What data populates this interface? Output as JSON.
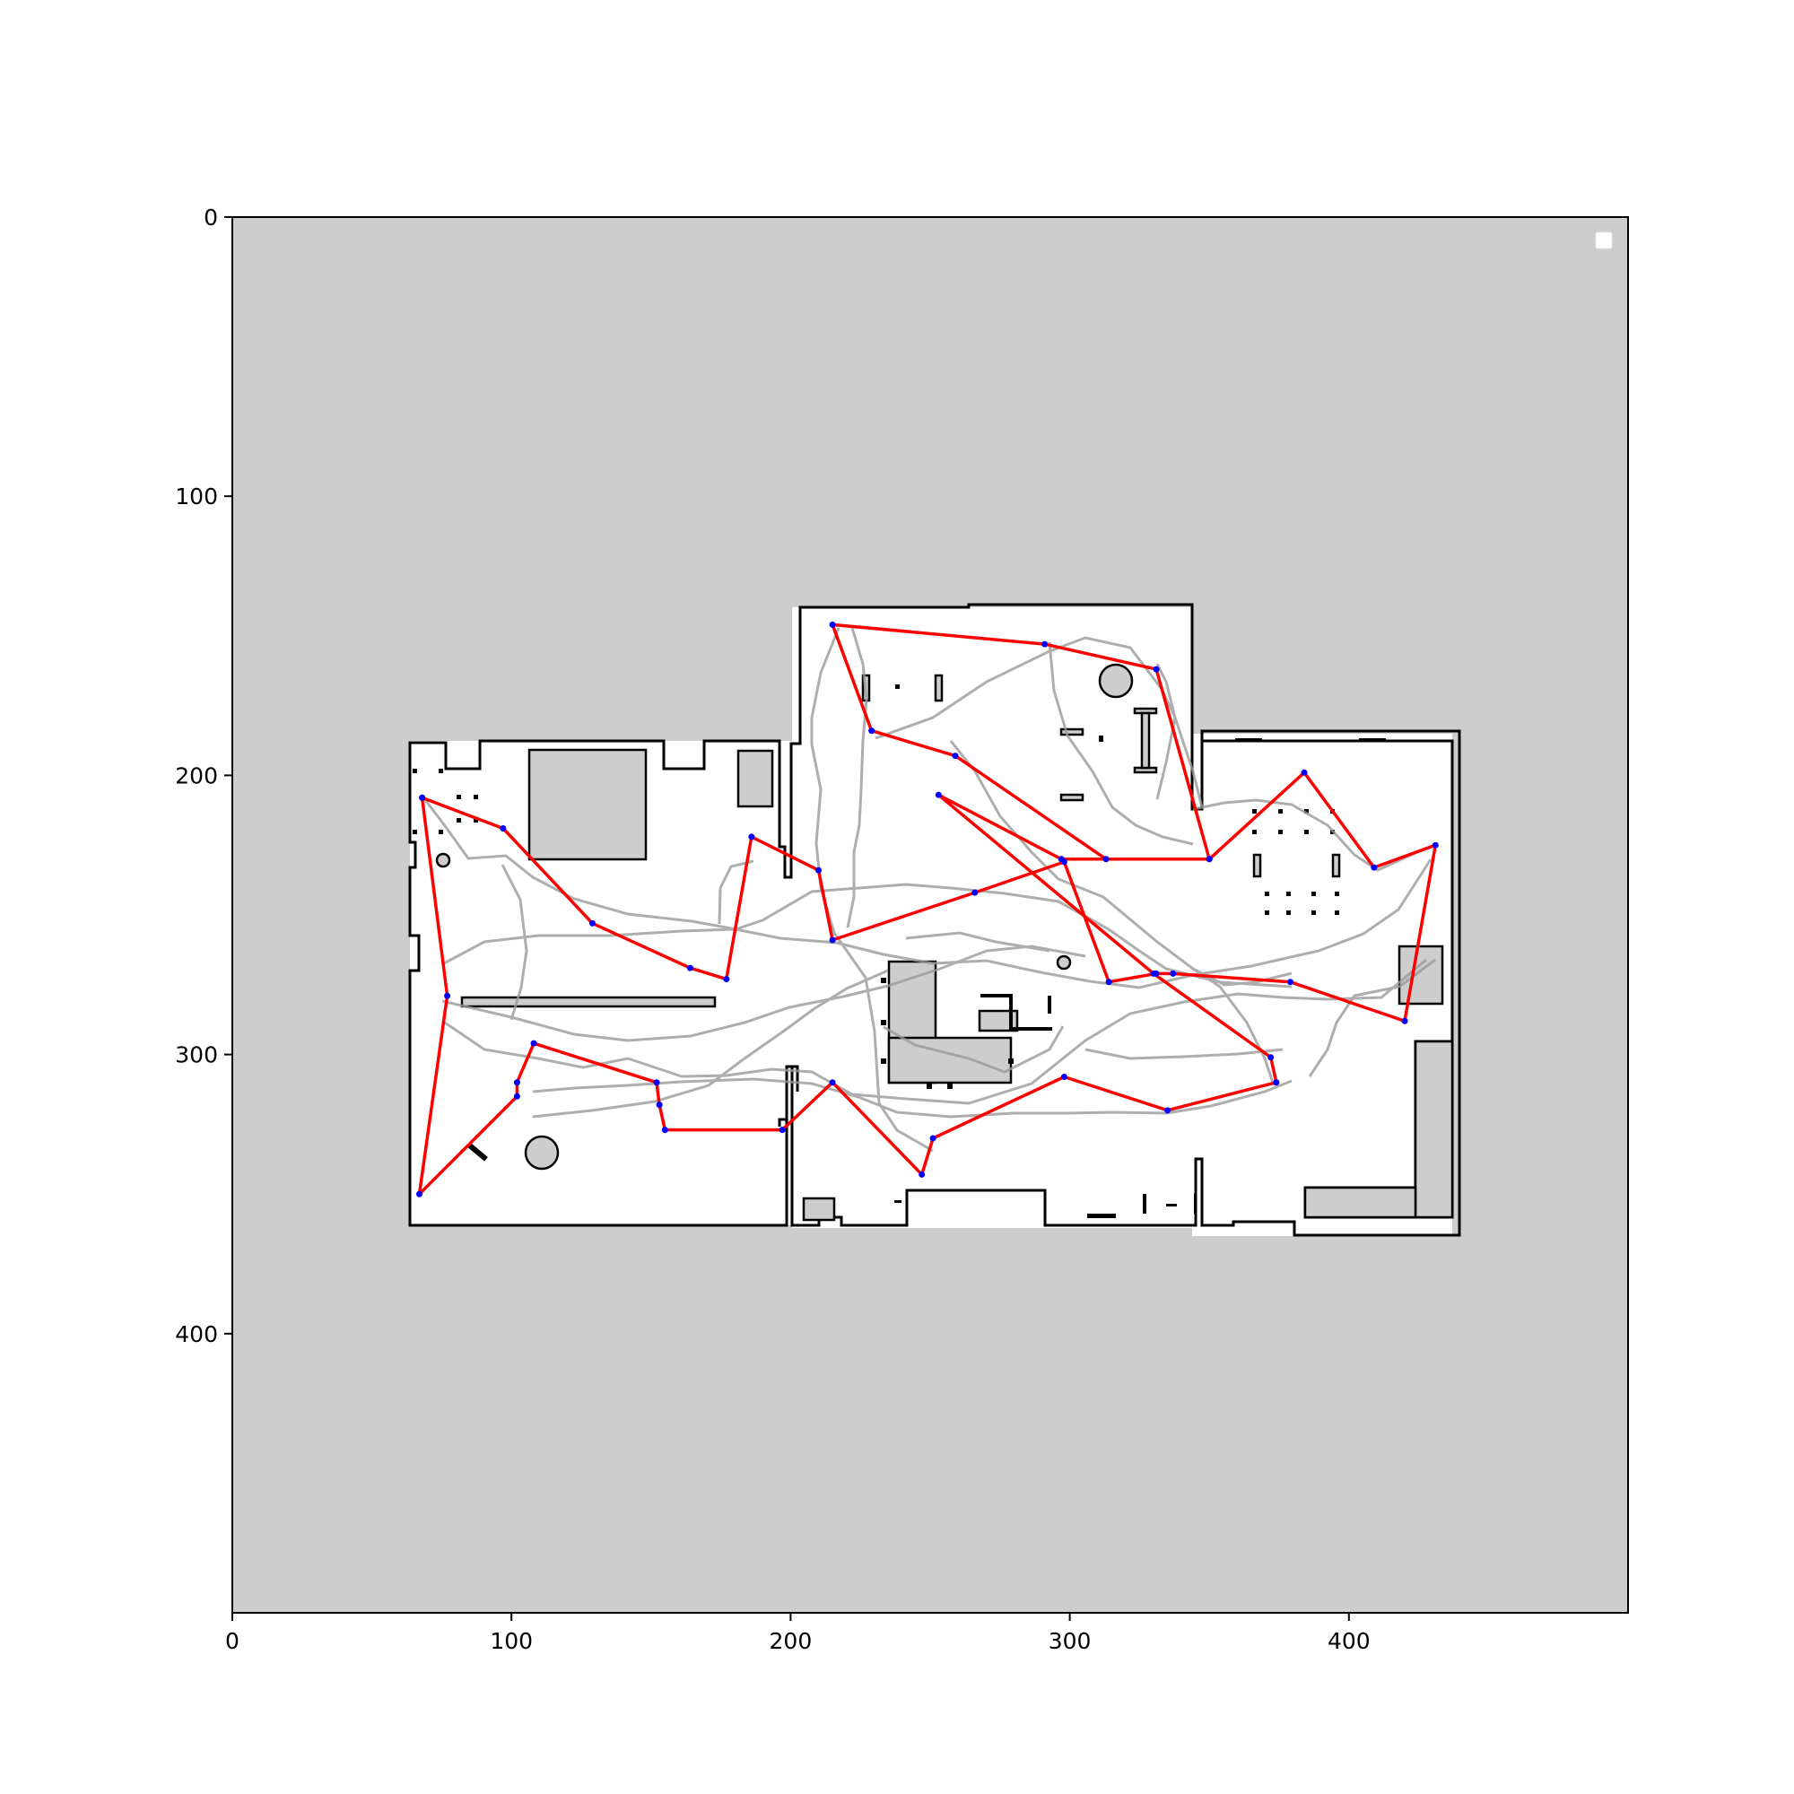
{
  "figure": {
    "type": "occupancy-grid-map-with-paths",
    "colors": {
      "background": "#ffffff",
      "unknown": "#cdcdcd",
      "free": "#ffffff",
      "walls": "#000000",
      "explored_paths": "#999999",
      "route": "#ff0000",
      "waypoints": "#0000ff",
      "legend_box": "#ffffff"
    },
    "legend": {
      "placement": "top-right",
      "entries": []
    }
  },
  "chart_data": {
    "type": "map",
    "xlim": [
      0,
      500
    ],
    "ylim": [
      500,
      0
    ],
    "xticks": [
      0,
      100,
      200,
      300,
      400
    ],
    "yticks": [
      0,
      100,
      200,
      300,
      400
    ],
    "grid": false,
    "route": {
      "color": "#ff0000",
      "waypoints": [
        [
          68,
          208
        ],
        [
          97,
          219
        ],
        [
          129,
          253
        ],
        [
          164,
          269
        ],
        [
          177,
          273
        ],
        [
          186,
          222
        ],
        [
          210,
          234
        ],
        [
          215,
          259
        ],
        [
          266,
          242
        ],
        [
          298,
          231
        ],
        [
          314,
          274
        ],
        [
          331,
          271
        ],
        [
          337,
          271
        ],
        [
          379,
          274
        ],
        [
          420,
          288
        ],
        [
          431,
          225
        ],
        [
          409,
          233
        ],
        [
          384,
          199
        ],
        [
          350,
          230
        ],
        [
          313,
          230
        ],
        [
          259,
          193
        ],
        [
          229,
          184
        ],
        [
          215,
          146
        ],
        [
          291,
          153
        ],
        [
          331,
          162
        ],
        [
          350,
          230
        ],
        [
          297,
          230
        ],
        [
          253,
          207
        ],
        [
          330,
          271
        ],
        [
          372,
          301
        ],
        [
          374,
          310
        ],
        [
          335,
          320
        ],
        [
          298,
          308
        ],
        [
          251,
          330
        ],
        [
          247,
          343
        ],
        [
          215,
          310
        ],
        [
          197,
          327
        ],
        [
          155,
          327
        ],
        [
          153,
          318
        ],
        [
          152,
          310
        ],
        [
          108,
          296
        ],
        [
          102,
          310
        ],
        [
          102,
          315
        ],
        [
          67,
          350
        ],
        [
          77,
          279
        ],
        [
          68,
          208
        ]
      ]
    }
  }
}
